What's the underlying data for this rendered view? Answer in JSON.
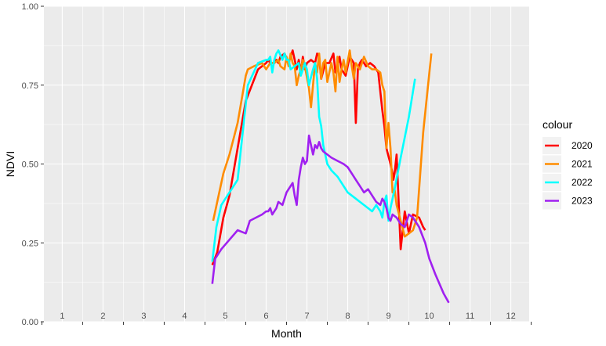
{
  "chart_data": {
    "type": "line",
    "xlabel": "Month",
    "ylabel": "NDVI",
    "xlim": [
      0.55,
      12.45
    ],
    "ylim": [
      0,
      1
    ],
    "x_ticks": [
      "1",
      "2",
      "3",
      "4",
      "5",
      "6",
      "7",
      "8",
      "9",
      "10",
      "11",
      "12"
    ],
    "y_ticks": [
      "0.00",
      "0.25",
      "0.50",
      "0.75",
      "1.00"
    ],
    "grid": true,
    "legend_title": "colour",
    "legend_position": "right",
    "series": [
      {
        "name": "2020",
        "color": "#ff0000",
        "x": [
          4.68,
          4.8,
          4.95,
          5.1,
          5.3,
          5.5,
          5.8,
          6.0,
          6.05,
          6.1,
          6.2,
          6.25,
          6.3,
          6.35,
          6.45,
          6.55,
          6.65,
          6.75,
          6.8,
          6.85,
          6.9,
          6.95,
          7.0,
          7.1,
          7.2,
          7.25,
          7.3,
          7.35,
          7.45,
          7.55,
          7.65,
          7.7,
          7.75,
          7.8,
          7.85,
          7.9,
          7.95,
          8.05,
          8.15,
          8.2,
          8.25,
          8.3,
          8.35,
          8.4,
          8.45,
          8.55,
          8.65,
          8.75,
          8.85,
          8.9,
          8.95,
          9.05,
          9.1,
          9.12,
          9.15,
          9.2,
          9.3,
          9.4,
          9.5,
          9.6,
          9.75,
          9.85,
          9.9
        ],
        "y": [
          0.18,
          0.22,
          0.33,
          0.4,
          0.55,
          0.7,
          0.8,
          0.82,
          0.83,
          0.82,
          0.82,
          0.83,
          0.82,
          0.84,
          0.85,
          0.82,
          0.86,
          0.8,
          0.83,
          0.79,
          0.84,
          0.8,
          0.82,
          0.83,
          0.82,
          0.85,
          0.84,
          0.77,
          0.82,
          0.82,
          0.85,
          0.79,
          0.81,
          0.84,
          0.8,
          0.79,
          0.78,
          0.84,
          0.82,
          0.63,
          0.8,
          0.82,
          0.83,
          0.82,
          0.81,
          0.82,
          0.81,
          0.79,
          0.67,
          0.62,
          0.55,
          0.5,
          0.47,
          0.45,
          0.47,
          0.53,
          0.23,
          0.35,
          0.28,
          0.34,
          0.33,
          0.3,
          0.29
        ]
      },
      {
        "name": "2021",
        "color": "#ff8c00",
        "x": [
          4.7,
          4.8,
          4.95,
          5.1,
          5.3,
          5.5,
          5.55,
          5.7,
          5.9,
          6.0,
          6.1,
          6.2,
          6.3,
          6.35,
          6.45,
          6.5,
          6.55,
          6.6,
          6.65,
          6.7,
          6.75,
          6.8,
          6.85,
          6.9,
          6.95,
          7.05,
          7.1,
          7.2,
          7.25,
          7.3,
          7.35,
          7.4,
          7.45,
          7.5,
          7.6,
          7.65,
          7.7,
          7.75,
          7.8,
          7.85,
          7.9,
          7.95,
          8.05,
          8.1,
          8.15,
          8.2,
          8.25,
          8.3,
          8.4,
          8.5,
          8.6,
          8.7,
          8.8,
          8.85,
          8.9,
          8.95,
          9.0,
          9.05,
          9.1,
          9.15,
          9.2,
          9.3,
          9.4,
          9.5,
          9.6,
          9.7,
          9.85,
          10.05
        ],
        "y": [
          0.32,
          0.38,
          0.47,
          0.53,
          0.63,
          0.78,
          0.8,
          0.81,
          0.82,
          0.8,
          0.82,
          0.82,
          0.83,
          0.81,
          0.8,
          0.84,
          0.81,
          0.85,
          0.82,
          0.81,
          0.75,
          0.78,
          0.8,
          0.83,
          0.81,
          0.74,
          0.68,
          0.82,
          0.79,
          0.85,
          0.77,
          0.82,
          0.83,
          0.76,
          0.82,
          0.79,
          0.73,
          0.84,
          0.76,
          0.8,
          0.83,
          0.79,
          0.86,
          0.81,
          0.77,
          0.82,
          0.81,
          0.8,
          0.84,
          0.81,
          0.8,
          0.8,
          0.79,
          0.75,
          0.73,
          0.55,
          0.63,
          0.55,
          0.41,
          0.42,
          0.37,
          0.32,
          0.27,
          0.28,
          0.29,
          0.33,
          0.6,
          0.85
        ]
      },
      {
        "name": "2022",
        "color": "#00ffff",
        "x": [
          4.68,
          4.78,
          4.9,
          5.05,
          5.3,
          5.55,
          5.8,
          6.0,
          6.05,
          6.1,
          6.15,
          6.2,
          6.25,
          6.3,
          6.4,
          6.45,
          6.5,
          6.55,
          6.6,
          6.7,
          6.8,
          6.85,
          6.95,
          7.0,
          7.05,
          7.15,
          7.2,
          7.25,
          7.3,
          7.35,
          7.4,
          7.5,
          7.6,
          7.75,
          7.9,
          8.0,
          8.1,
          8.2,
          8.3,
          8.4,
          8.5,
          8.6,
          8.7,
          8.8,
          8.85,
          8.9,
          8.95,
          9.0,
          9.05,
          9.15,
          9.3,
          9.5,
          9.65
        ],
        "y": [
          0.19,
          0.3,
          0.37,
          0.4,
          0.45,
          0.75,
          0.82,
          0.83,
          0.83,
          0.84,
          0.79,
          0.83,
          0.85,
          0.86,
          0.83,
          0.85,
          0.83,
          0.83,
          0.8,
          0.81,
          0.82,
          0.78,
          0.82,
          0.8,
          0.75,
          0.8,
          0.82,
          0.77,
          0.65,
          0.62,
          0.56,
          0.5,
          0.48,
          0.46,
          0.43,
          0.41,
          0.4,
          0.39,
          0.38,
          0.37,
          0.36,
          0.35,
          0.37,
          0.35,
          0.33,
          0.38,
          0.4,
          0.32,
          0.36,
          0.42,
          0.52,
          0.65,
          0.77
        ]
      },
      {
        "name": "2023",
        "color": "#a020f0",
        "x": [
          4.68,
          4.75,
          4.9,
          5.1,
          5.3,
          5.5,
          5.6,
          5.75,
          5.9,
          6.0,
          6.05,
          6.1,
          6.15,
          6.25,
          6.3,
          6.4,
          6.5,
          6.55,
          6.6,
          6.65,
          6.7,
          6.75,
          6.8,
          6.85,
          6.9,
          6.95,
          7.0,
          7.05,
          7.1,
          7.15,
          7.2,
          7.25,
          7.3,
          7.35,
          7.4,
          7.5,
          7.6,
          7.75,
          7.9,
          8.0,
          8.1,
          8.2,
          8.3,
          8.4,
          8.5,
          8.6,
          8.7,
          8.8,
          8.85,
          8.9,
          8.95,
          9.0,
          9.05,
          9.1,
          9.2,
          9.3,
          9.4,
          9.5,
          9.6,
          9.75,
          9.9,
          10.0,
          10.15,
          10.35,
          10.48
        ],
        "y": [
          0.12,
          0.2,
          0.23,
          0.26,
          0.29,
          0.28,
          0.32,
          0.33,
          0.34,
          0.35,
          0.35,
          0.36,
          0.34,
          0.36,
          0.38,
          0.37,
          0.41,
          0.42,
          0.43,
          0.44,
          0.4,
          0.37,
          0.45,
          0.49,
          0.52,
          0.5,
          0.51,
          0.59,
          0.56,
          0.53,
          0.56,
          0.55,
          0.57,
          0.55,
          0.54,
          0.53,
          0.52,
          0.51,
          0.5,
          0.49,
          0.47,
          0.45,
          0.43,
          0.41,
          0.42,
          0.4,
          0.38,
          0.37,
          0.39,
          0.38,
          0.36,
          0.33,
          0.32,
          0.34,
          0.33,
          0.31,
          0.3,
          0.34,
          0.33,
          0.3,
          0.25,
          0.2,
          0.15,
          0.09,
          0.06
        ]
      }
    ]
  }
}
